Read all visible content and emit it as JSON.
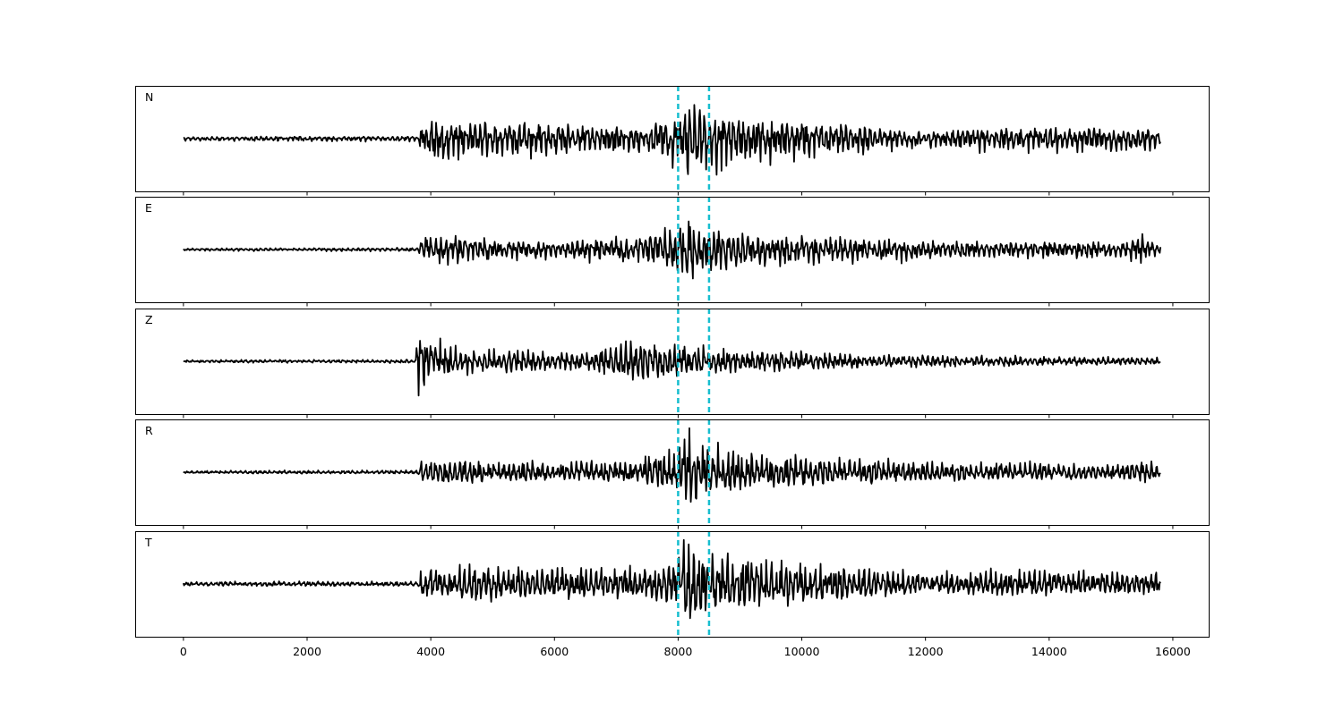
{
  "chart_data": {
    "type": "line",
    "panels": [
      {
        "label": "N",
        "series": [
          {
            "envelope": [
              [
                0,
                0.05
              ],
              [
                3800,
                0.06
              ],
              [
                3850,
                0.3
              ],
              [
                4000,
                0.45
              ],
              [
                5500,
                0.4
              ],
              [
                7500,
                0.3
              ],
              [
                8000,
                0.7
              ],
              [
                8150,
                1.0
              ],
              [
                8400,
                0.75
              ],
              [
                9000,
                0.55
              ],
              [
                10500,
                0.4
              ],
              [
                12000,
                0.2
              ],
              [
                13500,
                0.3
              ],
              [
                15800,
                0.25
              ]
            ]
          }
        ]
      },
      {
        "label": "E",
        "series": [
          {
            "envelope": [
              [
                0,
                0.03
              ],
              [
                3800,
                0.04
              ],
              [
                3850,
                0.3
              ],
              [
                4300,
                0.35
              ],
              [
                6000,
                0.18
              ],
              [
                7500,
                0.35
              ],
              [
                8000,
                0.6
              ],
              [
                8150,
                1.0
              ],
              [
                8500,
                0.5
              ],
              [
                9000,
                0.4
              ],
              [
                11000,
                0.28
              ],
              [
                13000,
                0.18
              ],
              [
                15300,
                0.2
              ],
              [
                15400,
                0.4
              ],
              [
                15800,
                0.1
              ]
            ]
          }
        ]
      },
      {
        "label": "Z",
        "series": [
          {
            "envelope": [
              [
                0,
                0.03
              ],
              [
                3750,
                0.04
              ],
              [
                3820,
                1.0
              ],
              [
                3900,
                0.6
              ],
              [
                4500,
                0.3
              ],
              [
                6500,
                0.2
              ],
              [
                7200,
                0.45
              ],
              [
                8000,
                0.4
              ],
              [
                8200,
                0.35
              ],
              [
                9000,
                0.25
              ],
              [
                11000,
                0.15
              ],
              [
                13000,
                0.12
              ],
              [
                15800,
                0.08
              ]
            ]
          }
        ]
      },
      {
        "label": "R",
        "series": [
          {
            "envelope": [
              [
                0,
                0.03
              ],
              [
                3800,
                0.04
              ],
              [
                3850,
                0.3
              ],
              [
                5000,
                0.25
              ],
              [
                7000,
                0.25
              ],
              [
                7500,
                0.4
              ],
              [
                8000,
                0.5
              ],
              [
                8150,
                1.0
              ],
              [
                8400,
                0.6
              ],
              [
                9000,
                0.45
              ],
              [
                11000,
                0.3
              ],
              [
                13000,
                0.2
              ],
              [
                15300,
                0.2
              ],
              [
                15400,
                0.4
              ],
              [
                15800,
                0.1
              ]
            ]
          }
        ]
      },
      {
        "label": "T",
        "series": [
          {
            "envelope": [
              [
                0,
                0.05
              ],
              [
                3800,
                0.06
              ],
              [
                3850,
                0.35
              ],
              [
                4500,
                0.45
              ],
              [
                6000,
                0.35
              ],
              [
                7500,
                0.35
              ],
              [
                8000,
                0.6
              ],
              [
                8150,
                1.0
              ],
              [
                8400,
                0.7
              ],
              [
                9000,
                0.6
              ],
              [
                10500,
                0.45
              ],
              [
                12000,
                0.25
              ],
              [
                13500,
                0.3
              ],
              [
                15800,
                0.25
              ]
            ]
          }
        ]
      }
    ],
    "vlines": {
      "x": [
        8000,
        8500
      ],
      "color": "#17becf",
      "style": "dashed"
    },
    "xlim": [
      -780,
      16580
    ],
    "x_range": [
      0,
      15800
    ],
    "ylim": [
      -1.2,
      1.2
    ],
    "xticks": [
      0,
      2000,
      4000,
      6000,
      8000,
      10000,
      12000,
      14000,
      16000
    ],
    "xtick_labels": [
      "0",
      "2000",
      "4000",
      "6000",
      "8000",
      "10000",
      "12000",
      "14000",
      "16000"
    ],
    "shared_x": true,
    "grid": false,
    "line_color": "#000000",
    "xlabel": "",
    "ylabel": ""
  }
}
